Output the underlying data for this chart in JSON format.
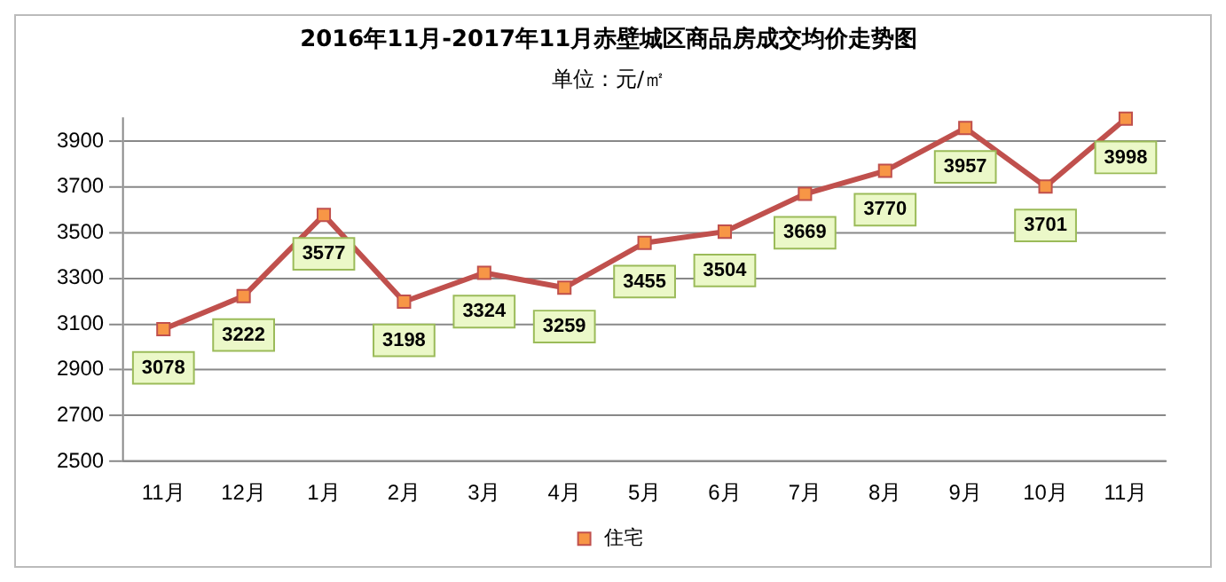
{
  "chart_data": {
    "type": "line",
    "title": "2016年11月-2017年11月赤壁城区商品房成交均价走势图",
    "subtitle": "单位：元/㎡",
    "categories": [
      "11月",
      "12月",
      "1月",
      "2月",
      "3月",
      "4月",
      "5月",
      "6月",
      "7月",
      "8月",
      "9月",
      "10月",
      "11月"
    ],
    "series": [
      {
        "name": "住宅",
        "color": "#c0504d",
        "values": [
          3078,
          3222,
          3577,
          3198,
          3324,
          3259,
          3455,
          3504,
          3669,
          3770,
          3957,
          3701,
          3998
        ]
      }
    ],
    "ylim": [
      2500,
      4000
    ],
    "yticks": [
      2500,
      2700,
      2900,
      3100,
      3300,
      3500,
      3700,
      3900
    ],
    "grid": "y",
    "legend": "bottom",
    "marker": "square",
    "line_style": "solid",
    "data_labels": true
  }
}
